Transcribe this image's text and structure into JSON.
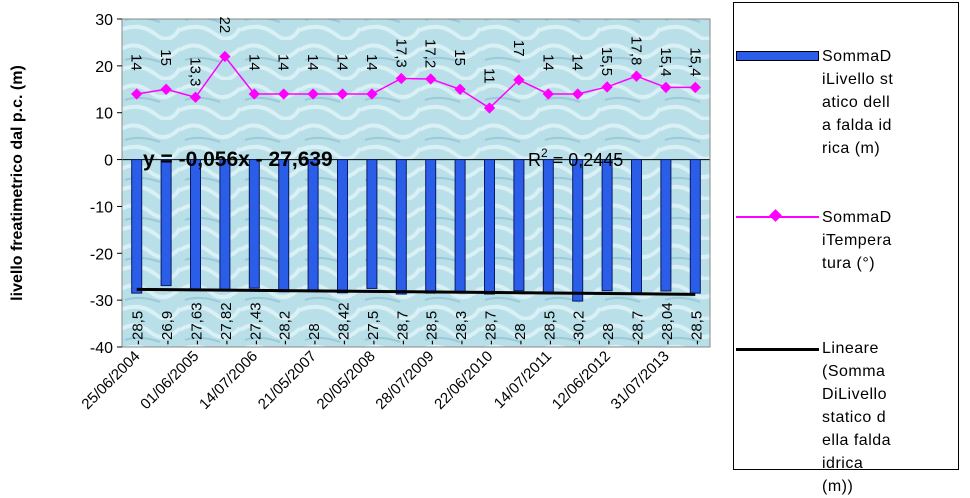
{
  "chart_data": {
    "type": "bar-line",
    "y_label": "livello freatimetrico dal p.c. (m)",
    "categories": [
      "25/06/2004",
      null,
      "01/06/2005",
      null,
      "14/07/2006",
      null,
      "21/05/2007",
      null,
      "20/05/2008",
      null,
      "28/07/2009",
      null,
      "22/06/2010",
      null,
      "14/07/2011",
      null,
      "12/06/2012",
      null,
      "31/07/2013",
      null
    ],
    "series": [
      {
        "name": "SommaDiLivello statico della falda idrica (m)",
        "type": "bar",
        "color": "#2a5ee8",
        "values": [
          -28.5,
          -26.9,
          -27.63,
          -27.82,
          -27.43,
          -28.2,
          -28,
          -28.42,
          -27.5,
          -28.7,
          -28.5,
          -28.3,
          -28.7,
          -28,
          -28.5,
          -30.2,
          -28,
          -28.7,
          -28.04,
          -28.5
        ],
        "value_labels": [
          "-28,5",
          "-26,9",
          "-27,63",
          "-27,82",
          "-27,43",
          "-28,2",
          "-28",
          "-28,42",
          "-27,5",
          "-28,7",
          "-28,5",
          "-28,3",
          "-28,7",
          "-28",
          "-28,5",
          "-30,2",
          "-28",
          "-28,7",
          "-28,04",
          "-28,5"
        ]
      },
      {
        "name": "SommaDiTemperatura (°)",
        "type": "line",
        "color": "#ff00ff",
        "values": [
          14,
          15,
          13.3,
          22,
          14,
          14,
          14,
          14,
          14,
          17.3,
          17.2,
          15,
          11,
          17,
          14,
          14,
          15.5,
          17.8,
          15.4,
          15.4
        ],
        "value_labels": [
          "14",
          "15",
          "13,3",
          "22",
          "14",
          "14",
          "14",
          "14",
          "14",
          "17,3",
          "17,2",
          "15",
          "11",
          "17",
          "14",
          "14",
          "15,5",
          "17,8",
          "15,4",
          "15,4"
        ]
      }
    ],
    "trendline": {
      "name": "Lineare (SommaDiLivello statico della falda idrica (m))",
      "color": "#000000",
      "slope": -0.056,
      "intercept": -27.639,
      "equation": "y = -0,056x - 27,639",
      "r2_base": "R",
      "r2_sup": "2",
      "r2_rest": " = 0,2445"
    },
    "ylim": [
      -40,
      30
    ],
    "yticks": [
      -40,
      -30,
      -20,
      -10,
      0,
      10,
      20,
      30
    ]
  }
}
